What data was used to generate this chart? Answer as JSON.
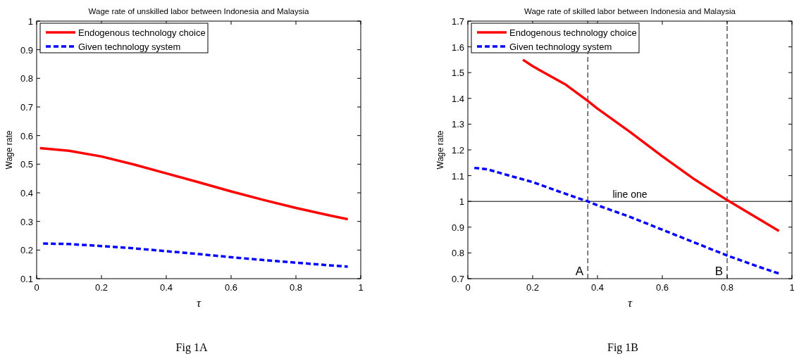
{
  "chart_data": [
    {
      "type": "line",
      "title": "Wage rate of unskilled labor between Indonesia and Malaysia",
      "xlabel": "τ",
      "ylabel": "Wage rate",
      "xlim": [
        0,
        1
      ],
      "ylim": [
        0.1,
        1
      ],
      "xticks": [
        0,
        0.2,
        0.4,
        0.6,
        0.8,
        1
      ],
      "yticks": [
        0.1,
        0.2,
        0.3,
        0.4,
        0.5,
        0.6,
        0.7,
        0.8,
        0.9,
        1
      ],
      "legend": "top left",
      "grid": false,
      "annotations": [
        "Fig 1A"
      ],
      "series": [
        {
          "name": "Endogenous technology choice",
          "color": "#ff0000",
          "line_style": "solid",
          "x": [
            0.01,
            0.1,
            0.2,
            0.3,
            0.4,
            0.5,
            0.6,
            0.7,
            0.8,
            0.9,
            0.96
          ],
          "values": [
            0.556,
            0.547,
            0.527,
            0.499,
            0.468,
            0.437,
            0.405,
            0.375,
            0.347,
            0.322,
            0.308
          ]
        },
        {
          "name": "Given technology system",
          "color": "#0000ff",
          "line_style": "dashed",
          "x": [
            0.02,
            0.1,
            0.2,
            0.3,
            0.4,
            0.5,
            0.6,
            0.7,
            0.8,
            0.9,
            0.96
          ],
          "values": [
            0.223,
            0.221,
            0.214,
            0.206,
            0.196,
            0.186,
            0.175,
            0.165,
            0.156,
            0.147,
            0.142
          ]
        }
      ]
    },
    {
      "type": "line",
      "title": "Wage rate of skilled labor between Indonesia and Malaysia",
      "xlabel": "τ",
      "ylabel": "Wage rate",
      "xlim": [
        0,
        1
      ],
      "ylim": [
        0.7,
        1.7
      ],
      "xticks": [
        0,
        0.2,
        0.4,
        0.6,
        0.8,
        1
      ],
      "yticks": [
        0.7,
        0.8,
        0.9,
        1,
        1.1,
        1.2,
        1.3,
        1.4,
        1.5,
        1.6,
        1.7
      ],
      "legend": "top left",
      "grid": false,
      "annotations": [
        "Fig 1B"
      ],
      "ref_lines": [
        {
          "axis": "y",
          "value": 1,
          "label": "line one",
          "color": "#000000",
          "line_style": "solid"
        },
        {
          "axis": "x",
          "value": 0.37,
          "label": "A",
          "color": "#000000",
          "line_style": "dashed"
        },
        {
          "axis": "x",
          "value": 0.8,
          "label": "B",
          "color": "#000000",
          "line_style": "dashed"
        }
      ],
      "series": [
        {
          "name": "Endogenous technology choice",
          "color": "#ff0000",
          "line_style": "solid",
          "x": [
            0.17,
            0.2,
            0.3,
            0.37,
            0.4,
            0.5,
            0.6,
            0.7,
            0.8,
            0.9,
            0.96
          ],
          "values": [
            1.55,
            1.525,
            1.455,
            1.39,
            1.36,
            1.27,
            1.175,
            1.085,
            1.005,
            0.93,
            0.885
          ]
        },
        {
          "name": "Given technology system",
          "color": "#0000ff",
          "line_style": "dashed",
          "x": [
            0.02,
            0.06,
            0.1,
            0.2,
            0.3,
            0.37,
            0.4,
            0.5,
            0.6,
            0.7,
            0.8,
            0.9,
            0.96
          ],
          "values": [
            1.13,
            1.125,
            1.11,
            1.075,
            1.03,
            1.0,
            0.985,
            0.94,
            0.89,
            0.84,
            0.79,
            0.745,
            0.72
          ]
        }
      ]
    }
  ]
}
